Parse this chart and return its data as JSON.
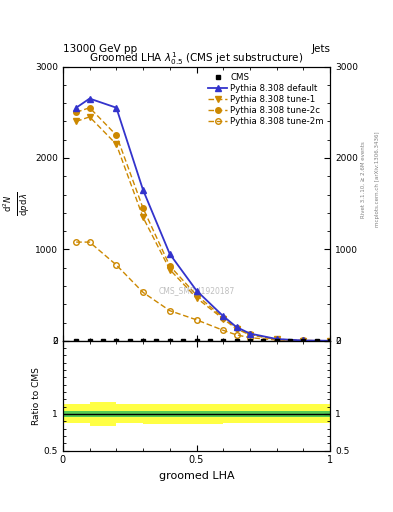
{
  "title": "Groomed LHA $\\lambda^{1}_{0.5}$ (CMS jet substructure)",
  "top_left_label": "13000 GeV pp",
  "top_right_label": "Jets",
  "right_label_top": "Rivet 3.1.10, ≥ 2.6M events",
  "right_label_bottom": "mcplots.cern.ch [arXiv:1306.3436]",
  "watermark": "CMS_SMP_J1920187",
  "xlabel": "groomed LHA",
  "ylabel_ratio": "Ratio to CMS",
  "pythia_default_x": [
    0.05,
    0.1,
    0.2,
    0.3,
    0.4,
    0.5,
    0.6,
    0.65,
    0.7,
    0.8,
    0.9,
    1.0
  ],
  "pythia_default_y": [
    2550,
    2650,
    2550,
    1650,
    950,
    550,
    270,
    150,
    80,
    20,
    4,
    1
  ],
  "pythia_tune1_x": [
    0.05,
    0.1,
    0.2,
    0.3,
    0.4,
    0.5,
    0.6,
    0.65,
    0.7,
    0.8,
    0.9,
    1.0
  ],
  "pythia_tune1_y": [
    2400,
    2450,
    2150,
    1350,
    780,
    470,
    240,
    130,
    65,
    15,
    3,
    0.8
  ],
  "pythia_tune2c_x": [
    0.05,
    0.1,
    0.2,
    0.3,
    0.4,
    0.5,
    0.6,
    0.65,
    0.7,
    0.8,
    0.9,
    1.0
  ],
  "pythia_tune2c_y": [
    2500,
    2550,
    2250,
    1450,
    820,
    500,
    255,
    140,
    70,
    18,
    4,
    1
  ],
  "pythia_tune2m_x": [
    0.05,
    0.1,
    0.2,
    0.3,
    0.4,
    0.5,
    0.6,
    0.65,
    0.7,
    0.8,
    0.9,
    1.0
  ],
  "pythia_tune2m_y": [
    1080,
    1080,
    830,
    530,
    330,
    230,
    115,
    65,
    35,
    9,
    2,
    0.4
  ],
  "cms_x": [
    0.05,
    0.1,
    0.15,
    0.2,
    0.25,
    0.3,
    0.35,
    0.4,
    0.45,
    0.5,
    0.55,
    0.6,
    0.65,
    0.7,
    0.75,
    0.8,
    0.85,
    0.9,
    0.95,
    1.0
  ],
  "cms_y": [
    0,
    0,
    0,
    0,
    0,
    0,
    0,
    0,
    0,
    0,
    0,
    0,
    0,
    0,
    0,
    0,
    0,
    0,
    0,
    0
  ],
  "ylim_main": [
    0,
    3000
  ],
  "ylim_ratio": [
    0.5,
    2.0
  ],
  "color_default": "#3333cc",
  "color_orange": "#cc8800",
  "ratio_x_edges": [
    0.0,
    0.1,
    0.2,
    0.3,
    0.4,
    0.5,
    0.6,
    0.7,
    0.8,
    0.9,
    1.0
  ],
  "yellow_lo": [
    0.87,
    0.84,
    0.87,
    0.86,
    0.86,
    0.86,
    0.87,
    0.87,
    0.87,
    0.87,
    0.92
  ],
  "yellow_hi": [
    1.13,
    1.16,
    1.13,
    1.14,
    1.14,
    1.14,
    1.13,
    1.13,
    1.13,
    1.13,
    1.08
  ],
  "green_lo": [
    0.96,
    0.96,
    0.96,
    0.96,
    0.96,
    0.96,
    0.96,
    0.96,
    0.96,
    0.96,
    0.96
  ],
  "green_hi": [
    1.04,
    1.04,
    1.04,
    1.04,
    1.04,
    1.04,
    1.04,
    1.04,
    1.04,
    1.04,
    1.04
  ]
}
